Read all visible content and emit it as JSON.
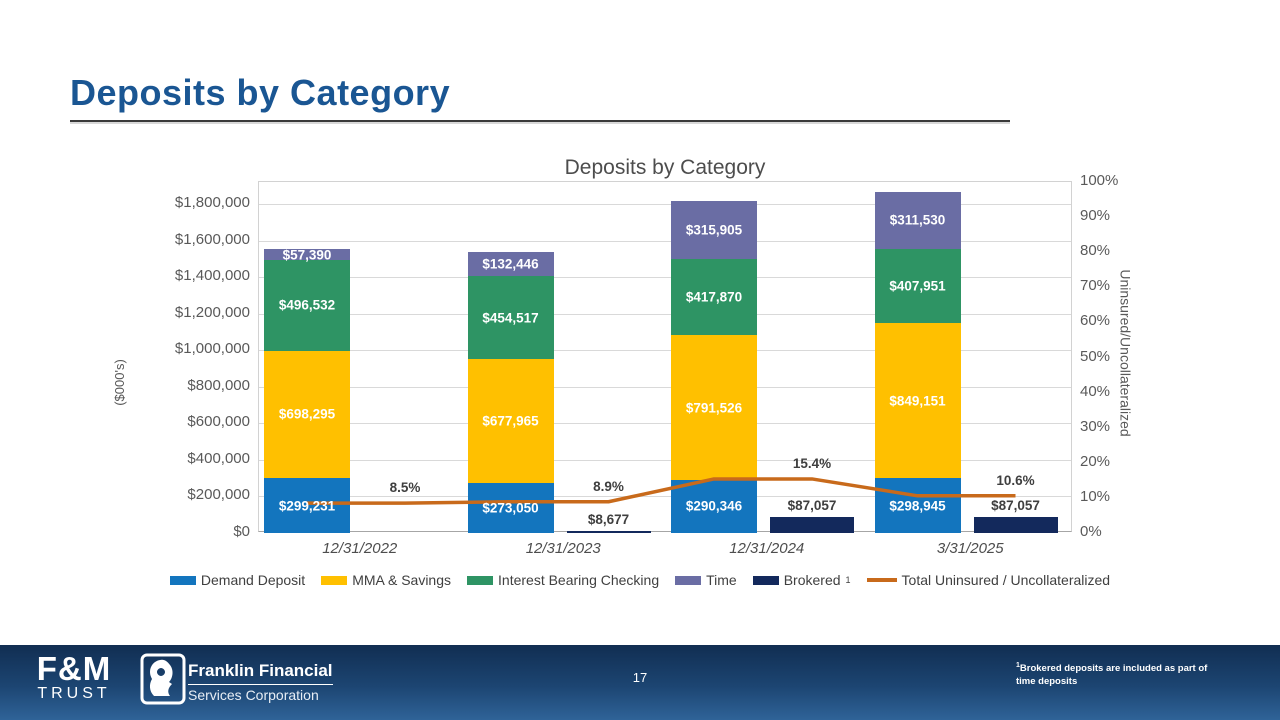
{
  "slide": {
    "title": "Deposits by Category",
    "page_number": "17",
    "footnote_sup": "1",
    "footnote_text": "Brokered deposits are included as part of time deposits"
  },
  "footer": {
    "fm_logo_top": "F&M",
    "fm_logo_bottom": "TRUST",
    "company_line1": "Franklin Financial",
    "company_line2": "Services Corporation"
  },
  "colors": {
    "title_blue": "#1A5693",
    "footer_navy": "#112E52"
  },
  "chart_data": {
    "type": "bar",
    "title": "Deposits by Category",
    "ylabel": "($000's)",
    "y2label": "Uninsured/Uncollateralized",
    "categories": [
      "12/31/2022",
      "12/31/2023",
      "12/31/2024",
      "3/31/2025"
    ],
    "ylim": [
      0,
      1920000
    ],
    "y2lim": [
      0,
      100
    ],
    "grid": true,
    "legend_position": "bottom",
    "y_ticks": [
      {
        "label": "$0",
        "value": 0
      },
      {
        "label": "$200,000",
        "value": 200000
      },
      {
        "label": "$400,000",
        "value": 400000
      },
      {
        "label": "$600,000",
        "value": 600000
      },
      {
        "label": "$800,000",
        "value": 800000
      },
      {
        "label": "$1,000,000",
        "value": 1000000
      },
      {
        "label": "$1,200,000",
        "value": 1200000
      },
      {
        "label": "$1,400,000",
        "value": 1400000
      },
      {
        "label": "$1,600,000",
        "value": 1600000
      },
      {
        "label": "$1,800,000",
        "value": 1800000
      }
    ],
    "y2_ticks": [
      {
        "label": "0%",
        "value": 0
      },
      {
        "label": "10%",
        "value": 10
      },
      {
        "label": "20%",
        "value": 20
      },
      {
        "label": "30%",
        "value": 30
      },
      {
        "label": "40%",
        "value": 40
      },
      {
        "label": "50%",
        "value": 50
      },
      {
        "label": "60%",
        "value": 60
      },
      {
        "label": "70%",
        "value": 70
      },
      {
        "label": "80%",
        "value": 80
      },
      {
        "label": "90%",
        "value": 90
      },
      {
        "label": "100%",
        "value": 100
      }
    ],
    "series": [
      {
        "name": "Demand Deposit",
        "color": "#1375BE",
        "values": [
          299231,
          273050,
          290346,
          298945
        ],
        "labels": [
          "$299,231",
          "$273,050",
          "$290,346",
          "$298,945"
        ]
      },
      {
        "name": "MMA & Savings",
        "color": "#FFC000",
        "values": [
          698295,
          677965,
          791526,
          849151
        ],
        "labels": [
          "$698,295",
          "$677,965",
          "$791,526",
          "$849,151"
        ]
      },
      {
        "name": "Interest Bearing Checking",
        "color": "#2E9464",
        "values": [
          496532,
          454517,
          417870,
          407951
        ],
        "labels": [
          "$496,532",
          "$454,517",
          "$417,870",
          "$407,951"
        ]
      },
      {
        "name": "Time",
        "color": "#6A6DA4",
        "values": [
          57390,
          132446,
          315905,
          311530
        ],
        "labels": [
          "$57,390",
          "$132,446",
          "$315,905",
          "$311,530"
        ]
      }
    ],
    "brokered": {
      "name": "Brokered",
      "sup": "1",
      "color": "#13295C",
      "values": [
        0,
        8677,
        87057,
        87057
      ],
      "labels": [
        "",
        "$8,677",
        "$87,057",
        "$87,057"
      ]
    },
    "line": {
      "name": "Total Uninsured / Uncollateralized",
      "color": "#C86A1B",
      "values": [
        8.5,
        8.9,
        15.4,
        10.6
      ],
      "labels": [
        "8.5%",
        "8.9%",
        "15.4%",
        "10.6%"
      ]
    }
  }
}
